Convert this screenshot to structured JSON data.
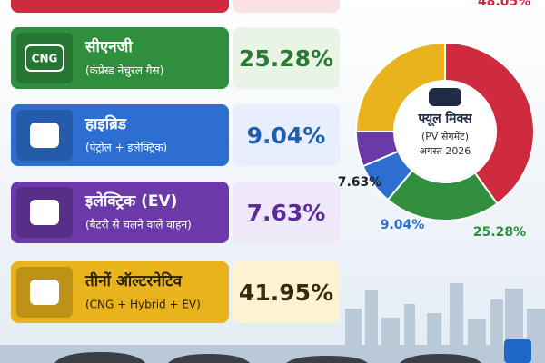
{
  "cards": [
    {
      "title": "सीएनजी",
      "subtitle": "(कंप्रेस्ड नेचुरल गैस)",
      "value": "25.28%",
      "icon": "CNG"
    },
    {
      "title": "हाइब्रिड",
      "subtitle": "(पेट्रोल + इलेक्ट्रिक)",
      "value": "9.04%"
    },
    {
      "title": "इलेक्ट्रिक (EV)",
      "subtitle": "(बैटरी से चलने वाले वाहन)",
      "value": "7.63%"
    },
    {
      "title": "तीनों ऑल्टरनेटिव",
      "subtitle": "(CNG + Hybrid + EV)",
      "value": "41.95%"
    }
  ],
  "chart_data": {
    "type": "pie",
    "title": "फ्यूल मिक्स",
    "subtitle": "(PV सेगमेंट)",
    "date": "अगस्त 2026",
    "values": [
      48.05,
      25.28,
      9.04,
      7.63,
      30
    ],
    "value_labels": [
      "48.05%",
      "25.28%",
      "9.04%",
      "7.63%",
      null
    ],
    "colors": [
      "#cf2a3e",
      "#2f8f3f",
      "#2d6fd1",
      "#6b3aa8",
      "#e8b31c"
    ]
  }
}
